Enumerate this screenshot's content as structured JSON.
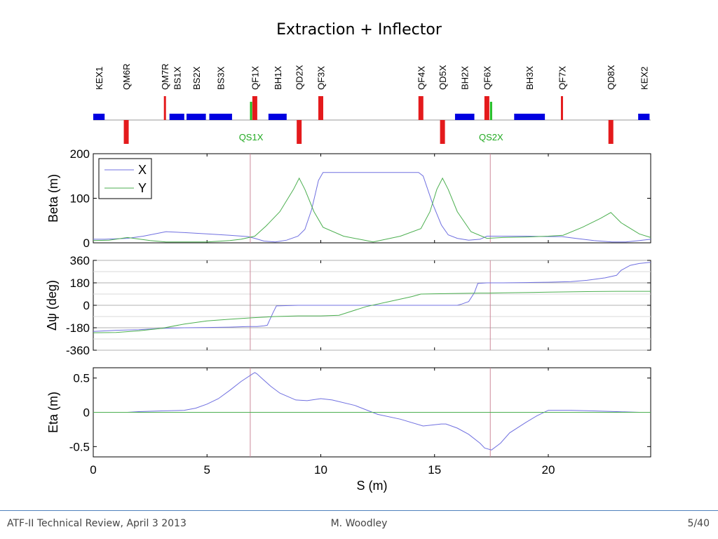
{
  "slide": {
    "title": "Extraction + Inflector",
    "footer_left": "ATF-II Technical Review, April 3 2013",
    "footer_center": "M. Woodley",
    "footer_right": "5/40"
  },
  "colors": {
    "x_series": "#7070e0",
    "y_series": "#4caf50",
    "quad": "#e41a1c",
    "bend": "#0000e0",
    "skew": "#22bb22",
    "marker_line": "#cc8899",
    "grid": "#b0b0b0"
  },
  "chart_data": [
    {
      "type": "lattice",
      "s_range": [
        0,
        24.5
      ],
      "elements": [
        {
          "name": "KEX1",
          "kind": "bend",
          "s": [
            0.0,
            0.5
          ]
        },
        {
          "name": "QM6R",
          "kind": "quad",
          "sign": -1,
          "s": [
            1.35,
            1.55
          ]
        },
        {
          "name": "QM7R",
          "kind": "quad",
          "sign": 1,
          "thin": true,
          "s": [
            3.1,
            3.2
          ]
        },
        {
          "name": "BS1X",
          "kind": "bend",
          "s": [
            3.35,
            4.0
          ]
        },
        {
          "name": "BS2X",
          "kind": "bend",
          "s": [
            4.1,
            4.95
          ]
        },
        {
          "name": "BS3X",
          "kind": "bend",
          "s": [
            5.1,
            6.1
          ]
        },
        {
          "name": "QS1X",
          "kind": "skew",
          "s": [
            6.9,
            6.97
          ]
        },
        {
          "name": "QF1X",
          "kind": "quad",
          "sign": 1,
          "s": [
            7.0,
            7.2
          ]
        },
        {
          "name": "BH1X",
          "kind": "bend",
          "s": [
            7.7,
            8.5
          ]
        },
        {
          "name": "QD2X",
          "kind": "quad",
          "sign": -1,
          "s": [
            8.95,
            9.15
          ]
        },
        {
          "name": "QF3X",
          "kind": "quad",
          "sign": 1,
          "s": [
            9.9,
            10.1
          ]
        },
        {
          "name": "QF4X",
          "kind": "quad",
          "sign": 1,
          "s": [
            14.3,
            14.5
          ]
        },
        {
          "name": "QD5X",
          "kind": "quad",
          "sign": -1,
          "s": [
            15.25,
            15.45
          ]
        },
        {
          "name": "BH2X",
          "kind": "bend",
          "s": [
            15.9,
            16.75
          ]
        },
        {
          "name": "QF6X",
          "kind": "quad",
          "sign": 1,
          "s": [
            17.2,
            17.4
          ]
        },
        {
          "name": "QS2X",
          "kind": "skew",
          "s": [
            17.45,
            17.52
          ]
        },
        {
          "name": "BH3X",
          "kind": "bend",
          "s": [
            18.5,
            19.85
          ]
        },
        {
          "name": "QF7X",
          "kind": "quad",
          "sign": 1,
          "thin": true,
          "s": [
            20.55,
            20.65
          ]
        },
        {
          "name": "QD8X",
          "kind": "quad",
          "sign": -1,
          "s": [
            22.65,
            22.85
          ]
        },
        {
          "name": "KEX2",
          "kind": "bend",
          "s": [
            23.95,
            24.45
          ]
        }
      ],
      "skew_labels": [
        "QS1X",
        "QS2X"
      ]
    },
    {
      "type": "line",
      "ylabel": "Beta (m)",
      "xlim": [
        0,
        24.5
      ],
      "ylim": [
        0,
        200
      ],
      "yticks": [
        0,
        100,
        200
      ],
      "grid": false,
      "legend": "top-left",
      "marker_s": [
        6.9,
        17.45
      ],
      "series": [
        {
          "name": "X",
          "x": [
            0,
            0.5,
            1.5,
            2.2,
            3.2,
            4.0,
            5.0,
            6.0,
            6.8,
            7.1,
            7.5,
            8.0,
            8.5,
            9.0,
            9.3,
            9.6,
            9.9,
            10.1,
            14.3,
            14.5,
            14.9,
            15.3,
            15.6,
            16.0,
            16.5,
            17.0,
            17.3,
            18.0,
            19.0,
            20.0,
            20.6,
            21.2,
            22.0,
            22.8,
            23.4,
            24.0,
            24.5
          ],
          "y": [
            8,
            8,
            10,
            15,
            25,
            23,
            20,
            17,
            14,
            10,
            4,
            2,
            6,
            15,
            30,
            75,
            140,
            158,
            158,
            150,
            90,
            40,
            18,
            10,
            6,
            8,
            15,
            15,
            15,
            14,
            14,
            10,
            5,
            2,
            2,
            5,
            8
          ]
        },
        {
          "name": "Y",
          "x": [
            0,
            0.7,
            1.5,
            2.5,
            3.2,
            4.0,
            5.0,
            6.0,
            6.5,
            7.1,
            7.6,
            8.2,
            8.8,
            9.05,
            9.3,
            9.7,
            10.1,
            11.0,
            12.0,
            12.3,
            13.5,
            14.4,
            14.8,
            15.1,
            15.35,
            15.6,
            16.0,
            16.6,
            17.3,
            18.0,
            19.0,
            20.0,
            20.65,
            21.5,
            22.3,
            22.75,
            23.2,
            24.0,
            24.5
          ],
          "y": [
            5,
            6,
            12,
            5,
            2,
            2,
            2,
            5,
            8,
            15,
            38,
            70,
            120,
            145,
            120,
            70,
            35,
            15,
            5,
            2,
            15,
            32,
            70,
            120,
            145,
            120,
            70,
            25,
            10,
            12,
            13,
            15,
            17,
            35,
            55,
            68,
            45,
            20,
            12
          ]
        }
      ]
    },
    {
      "type": "line",
      "ylabel": "Δψ (deg)",
      "xlim": [
        0,
        24.5
      ],
      "ylim": [
        -360,
        360
      ],
      "yticks": [
        -360,
        -180,
        0,
        180,
        360
      ],
      "grid": true,
      "marker_s": [
        6.9,
        17.45
      ],
      "series": [
        {
          "name": "X",
          "x": [
            0,
            1.0,
            2.0,
            3.0,
            4.0,
            5.0,
            6.0,
            6.8,
            7.2,
            7.5,
            7.65,
            7.9,
            8.05,
            9.0,
            10.0,
            12.0,
            14.0,
            15.0,
            16.0,
            16.2,
            16.5,
            16.75,
            16.9,
            17.3,
            18.0,
            19.0,
            20.0,
            21.0,
            21.7,
            22.5,
            23.0,
            23.2,
            23.6,
            24.0,
            24.5
          ],
          "y": [
            -210,
            -200,
            -195,
            -185,
            -180,
            -178,
            -175,
            -170,
            -170,
            -165,
            -160,
            -60,
            -5,
            0,
            0,
            0,
            0,
            0,
            0,
            10,
            30,
            100,
            175,
            180,
            180,
            182,
            185,
            190,
            200,
            220,
            240,
            280,
            320,
            335,
            345
          ]
        },
        {
          "name": "Y",
          "x": [
            0,
            1.0,
            2.0,
            3.0,
            4.0,
            5.0,
            6.0,
            7.0,
            8.0,
            9.0,
            10.0,
            10.8,
            12.0,
            13.0,
            14.0,
            14.4,
            15.0,
            16.0,
            17.0,
            17.4,
            18.0,
            20.0,
            22.0,
            23.0,
            24.5
          ],
          "y": [
            -220,
            -218,
            -205,
            -185,
            -150,
            -125,
            -112,
            -100,
            -90,
            -85,
            -85,
            -80,
            -10,
            30,
            70,
            90,
            92,
            95,
            98,
            98,
            100,
            105,
            110,
            112,
            112
          ]
        }
      ]
    },
    {
      "type": "line",
      "ylabel": "Eta (m)",
      "xlabel": "S (m)",
      "xlim": [
        0,
        24.5
      ],
      "ylim": [
        -0.65,
        0.65
      ],
      "yticks": [
        -0.5,
        0,
        0.5
      ],
      "xticks": [
        0,
        5,
        10,
        15,
        20
      ],
      "grid": false,
      "marker_s": [
        6.9,
        17.45
      ],
      "series": [
        {
          "name": "X",
          "x": [
            0,
            1.5,
            2.0,
            3.0,
            4.0,
            4.5,
            5.0,
            5.5,
            6.0,
            6.5,
            7.0,
            7.1,
            7.2,
            7.4,
            7.8,
            8.2,
            8.9,
            9.4,
            10.0,
            10.5,
            11.5,
            12.5,
            13.5,
            14.5,
            15.3,
            15.5,
            16.0,
            16.5,
            17.0,
            17.2,
            17.5,
            17.9,
            18.3,
            19.0,
            19.5,
            20.0,
            21.0,
            22.0,
            23.0,
            24.0,
            24.5
          ],
          "y": [
            0,
            0,
            0.01,
            0.02,
            0.03,
            0.06,
            0.12,
            0.2,
            0.32,
            0.45,
            0.56,
            0.58,
            0.56,
            0.5,
            0.38,
            0.28,
            0.18,
            0.17,
            0.2,
            0.18,
            0.1,
            -0.03,
            -0.1,
            -0.2,
            -0.17,
            -0.17,
            -0.23,
            -0.32,
            -0.45,
            -0.52,
            -0.55,
            -0.45,
            -0.3,
            -0.15,
            -0.05,
            0.03,
            0.03,
            0.02,
            0.01,
            0,
            0
          ]
        },
        {
          "name": "Y",
          "x": [
            0,
            24.5
          ],
          "y": [
            0,
            0
          ]
        }
      ]
    }
  ]
}
